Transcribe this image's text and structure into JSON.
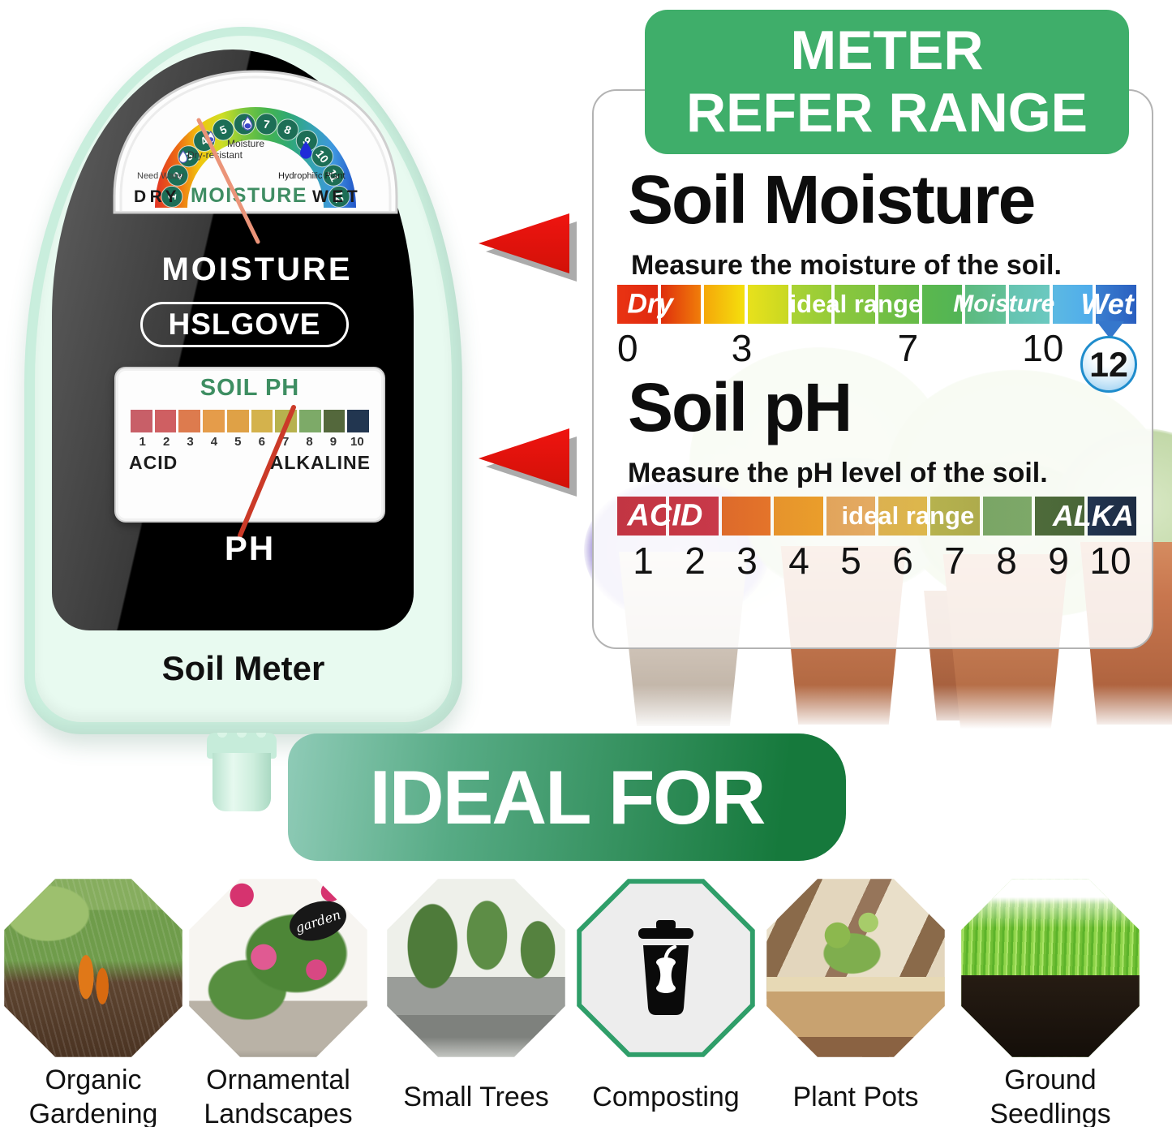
{
  "colors": {
    "banner_green": "#3fae6a",
    "arrow_red": "#ef1410",
    "device_mint": "#c9eedd",
    "ideal_gradient": [
      "#8fcbb7",
      "#16793c"
    ],
    "marker_blue": "#3577cc"
  },
  "device": {
    "brand": "HSLGOVE",
    "product_label": "Soil Meter",
    "panel_moisture_label": "MOISTURE",
    "panel_ph_label": "PH",
    "moisture_meter": {
      "scale_numbers": [
        "1",
        "2",
        "3",
        "4",
        "5",
        "6",
        "7",
        "8",
        "9",
        "10",
        "11",
        "12"
      ],
      "arc_colors": [
        "#e23324",
        "#ec6a15",
        "#f2c60e",
        "#cede24",
        "#7cc73e",
        "#46b54e",
        "#2fa874",
        "#35a3b0",
        "#3e96e0",
        "#2255c8"
      ],
      "needle_points_at": "4",
      "annotations": {
        "need_water": "Need Water",
        "dry_resistant": "Dry-resistant",
        "moisture": "Moisture",
        "hydrophilic": "Hydrophilic Plant"
      },
      "dry_label": "DRY",
      "center_label": "MOISTURE",
      "wet_label": "WET"
    },
    "ph_meter": {
      "title": "SOIL PH",
      "scale_numbers": [
        "1",
        "2",
        "3",
        "4",
        "5",
        "6",
        "7",
        "8",
        "9",
        "10"
      ],
      "swatch_colors": [
        "#c85f68",
        "#cf5f62",
        "#dd7b4e",
        "#e59c4a",
        "#dfa146",
        "#d4b24c",
        "#b7b24e",
        "#7daa68",
        "#54683c",
        "#223650"
      ],
      "acid_label": "ACID",
      "alkaline_label": "ALKALINE",
      "needle_points_at": "7"
    }
  },
  "refer_panel": {
    "banner_title": "METER\nREFER RANGE",
    "moisture_section": {
      "title": "Soil Moisture",
      "subtitle": "Measure the moisture of the soil.",
      "segments": [
        {
          "from": "#e93312",
          "to": "#e02a10"
        },
        {
          "from": "#df2e0c",
          "to": "#f07e0a"
        },
        {
          "from": "#f5a70a",
          "to": "#f4e00d"
        },
        {
          "from": "#e8e11c",
          "to": "#c8d822"
        },
        {
          "from": "#aad334",
          "to": "#95cb38"
        },
        {
          "from": "#8cc83c",
          "to": "#7ec341"
        },
        {
          "from": "#74c043",
          "to": "#66bb48"
        },
        {
          "from": "#5bb84d",
          "to": "#52b456"
        },
        {
          "from": "#5cba7e",
          "to": "#62c098"
        },
        {
          "from": "#66c4b0",
          "to": "#6ac8c0"
        },
        {
          "from": "#5cb9e2",
          "to": "#4facec"
        },
        {
          "from": "#3a7fd0",
          "to": "#2a5fc0"
        }
      ],
      "labels": [
        {
          "text": "Dry",
          "pct": 1,
          "align": "left",
          "italic": true,
          "size": 34
        },
        {
          "text": "ideal range",
          "pct": 46,
          "align": "center",
          "italic": false,
          "size": 31
        },
        {
          "text": "Moisture",
          "pct": 74.5,
          "align": "center",
          "italic": true,
          "size": 30
        },
        {
          "text": "Wet",
          "pct": 99.5,
          "align": "right",
          "italic": true,
          "size": 36
        }
      ],
      "ticks": [
        {
          "text": "0",
          "pct": 2
        },
        {
          "text": "3",
          "pct": 24
        },
        {
          "text": "7",
          "pct": 56
        },
        {
          "text": "10",
          "pct": 82
        }
      ],
      "marker_value": "12"
    },
    "ph_section": {
      "title": "Soil pH",
      "subtitle": "Measure the pH level of the soil.",
      "segments": [
        {
          "from": "#c23543",
          "to": "#c53744"
        },
        {
          "from": "#c53744",
          "to": "#c8394a"
        },
        {
          "from": "#dd6a2b",
          "to": "#e4742a"
        },
        {
          "from": "#e6932c",
          "to": "#ea9e2b"
        },
        {
          "from": "#e1a45c",
          "to": "#e4ab62"
        },
        {
          "from": "#dcb150",
          "to": "#ddb74b"
        },
        {
          "from": "#b6b24e",
          "to": "#aeab4c"
        },
        {
          "from": "#7aa566",
          "to": "#7da868"
        },
        {
          "from": "#4e6b3a",
          "to": "#4a6638"
        },
        {
          "from": "#223450",
          "to": "#1d2c42"
        }
      ],
      "labels": [
        {
          "text": "ACID",
          "pct": 1,
          "align": "left",
          "italic": true,
          "size": 38
        },
        {
          "text": "ideal range",
          "pct": 56,
          "align": "center",
          "italic": false,
          "size": 31
        },
        {
          "text": "ALKA",
          "pct": 99.5,
          "align": "right",
          "italic": true,
          "size": 36
        }
      ],
      "numbers": [
        "1",
        "2",
        "3",
        "4",
        "5",
        "6",
        "7",
        "8",
        "9",
        "10"
      ]
    }
  },
  "ideal_for": {
    "banner_label": "IDEAL FOR",
    "items": [
      {
        "label": "Organic\nGardening"
      },
      {
        "label": "Ornamental\nLandscapes",
        "tag": "garden"
      },
      {
        "label": "Small Trees"
      },
      {
        "label": "Composting"
      },
      {
        "label": "Plant Pots"
      },
      {
        "label": "Ground\nSeedlings"
      }
    ]
  }
}
